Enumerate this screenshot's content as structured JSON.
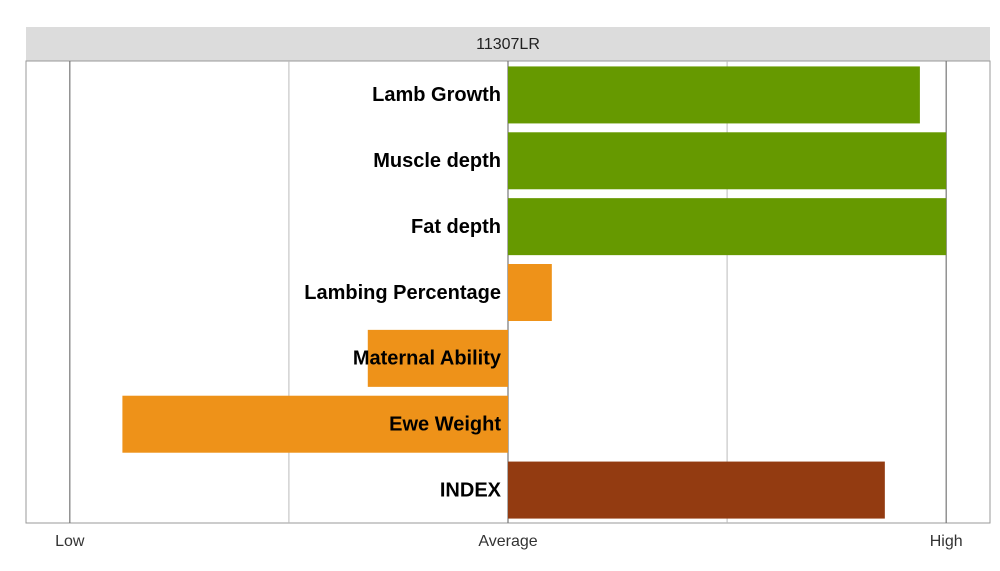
{
  "chart_data": {
    "type": "bar",
    "orientation": "horizontal",
    "title": "11307LR",
    "categories": [
      "Lamb Growth",
      "Muscle depth",
      "Fat depth",
      "Lambing Percentage",
      "Maternal Ability",
      "Ewe Weight",
      "INDEX"
    ],
    "values": [
      94,
      100,
      100,
      10,
      -32,
      -88,
      86
    ],
    "colors": [
      "#669900",
      "#669900",
      "#669900",
      "#ee9219",
      "#ee9219",
      "#ee9219",
      "#933b11"
    ],
    "xlim": [
      -110,
      110
    ],
    "xticks": [
      {
        "value": -100,
        "label": "Low"
      },
      {
        "value": 0,
        "label": "Average"
      },
      {
        "value": 100,
        "label": "High"
      }
    ],
    "minor_xticks": [
      -50,
      50
    ],
    "grid": true
  }
}
